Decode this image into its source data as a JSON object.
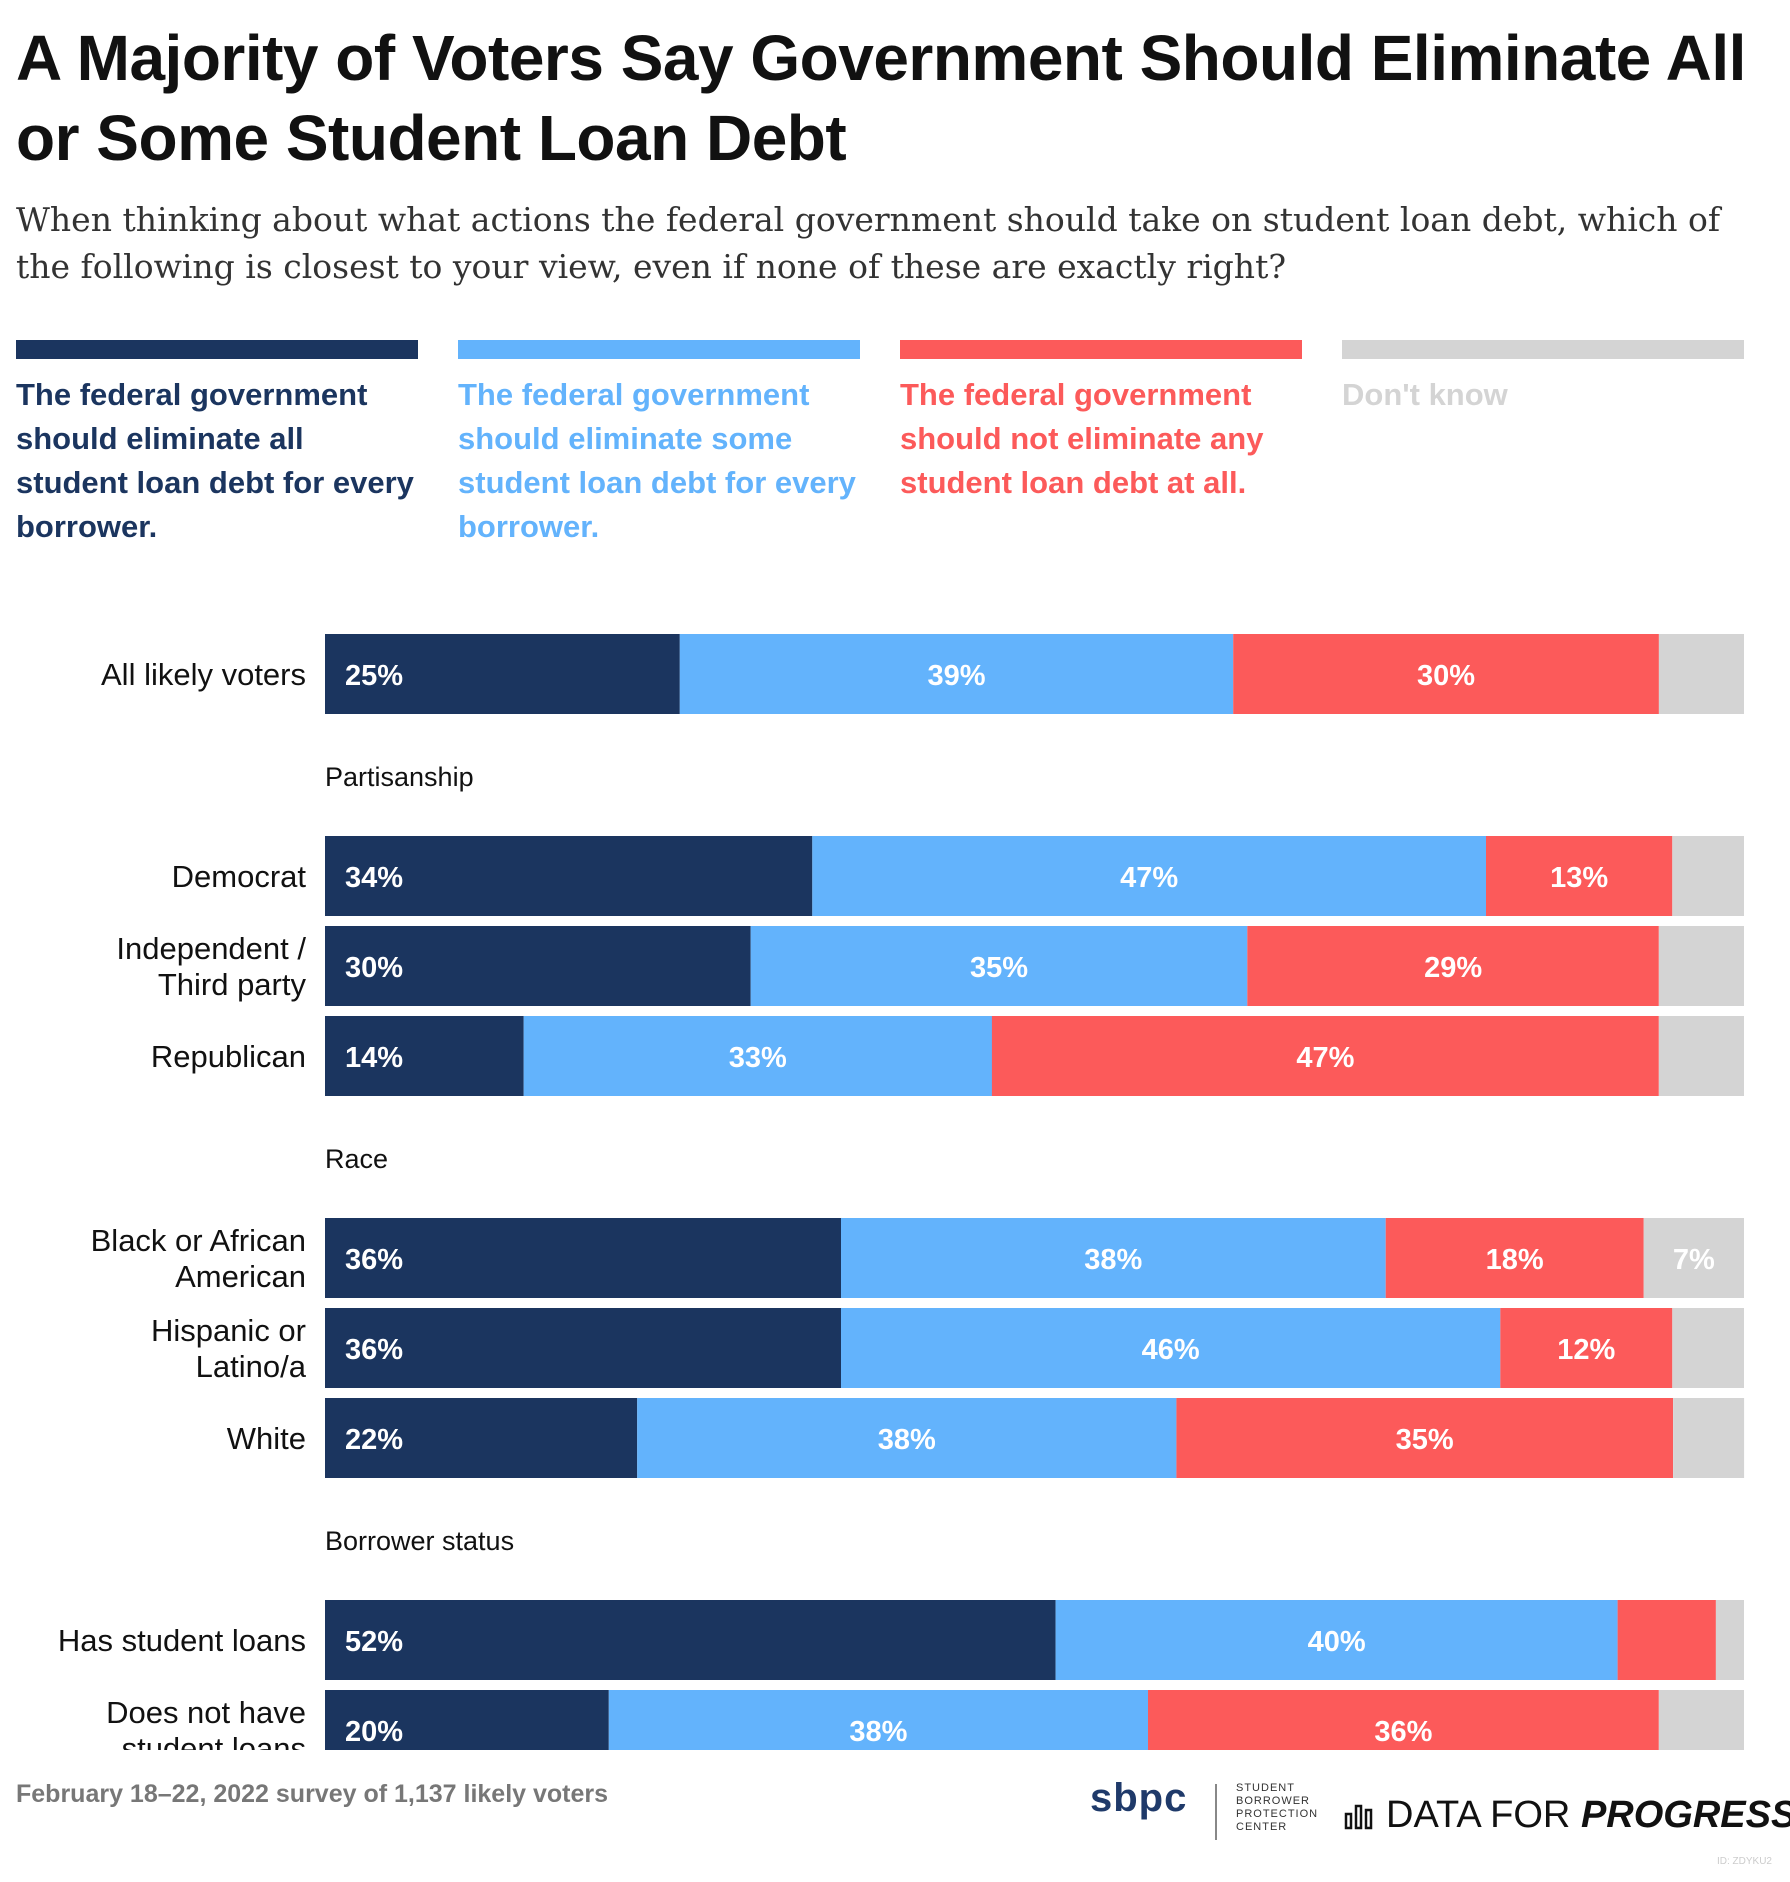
{
  "title": "A Majority of Voters Say Government Should Eliminate All or Some Student Loan Debt",
  "subtitle": "When thinking about what actions the federal government should take on student loan debt, which of the following is closest to your view, even if none of these are exactly right?",
  "footnote": "February 18–22, 2022 survey of 1,137 likely voters",
  "logos": {
    "sbpc_mark": "sbpc",
    "sbpc_lines": [
      "STUDENT",
      "BORROWER",
      "PROTECTION",
      "CENTER"
    ],
    "dfp_left": "DATA FOR",
    "dfp_right": "PROGRESS",
    "dfp_icon": "bar-chart-icon"
  },
  "corner_id": "ID: ZDYKU2",
  "colors": {
    "eliminate_all": "#1b355f",
    "eliminate_some": "#63b3fc",
    "eliminate_none": "#fc5a5a",
    "dont_know": "#d4d4d4",
    "group_label": "#111111",
    "axis_tick": "#777777"
  },
  "legend": [
    {
      "label": "The federal government should eliminate all student loan debt for every borrower.",
      "color": "#1b355f"
    },
    {
      "label": "The federal government should eliminate some student loan debt for every borrower.",
      "color": "#63b3fc"
    },
    {
      "label": "The federal government should not eliminate any student loan debt at all.",
      "color": "#fc5a5a"
    },
    {
      "label": "Don't know",
      "color": "#d4d4d4"
    }
  ],
  "chart_data": {
    "type": "bar",
    "orientation": "horizontal",
    "stacked": true,
    "series": [
      {
        "name": "The federal government should eliminate all student loan debt for every borrower.",
        "color": "#1b355f"
      },
      {
        "name": "The federal government should eliminate some student loan debt for every borrower.",
        "color": "#63b3fc"
      },
      {
        "name": "The federal government should not eliminate any student loan debt at all.",
        "color": "#fc5a5a"
      },
      {
        "name": "Don't know",
        "color": "#d4d4d4"
      }
    ],
    "groups": [
      {
        "header": "",
        "rows": [
          {
            "label": "All likely voters",
            "values": [
              25,
              39,
              30,
              6
            ],
            "labels": [
              "25%",
              "39%",
              "30%",
              ""
            ]
          }
        ]
      },
      {
        "header": "Partisanship",
        "rows": [
          {
            "label": "Democrat",
            "values": [
              34,
              47,
              13,
              5
            ],
            "labels": [
              "34%",
              "47%",
              "13%",
              ""
            ]
          },
          {
            "label": "Independent / Third party",
            "values": [
              30,
              35,
              29,
              6
            ],
            "labels": [
              "30%",
              "35%",
              "29%",
              ""
            ]
          },
          {
            "label": "Republican",
            "values": [
              14,
              33,
              47,
              6
            ],
            "labels": [
              "14%",
              "33%",
              "47%",
              ""
            ]
          }
        ]
      },
      {
        "header": "Race",
        "rows": [
          {
            "label": "Black or African American",
            "values": [
              36,
              38,
              18,
              7
            ],
            "labels": [
              "36%",
              "38%",
              "18%",
              "7%"
            ]
          },
          {
            "label": "Hispanic or Latino/a",
            "values": [
              36,
              46,
              12,
              5
            ],
            "labels": [
              "36%",
              "46%",
              "12%",
              ""
            ]
          },
          {
            "label": "White",
            "values": [
              22,
              38,
              35,
              5
            ],
            "labels": [
              "22%",
              "38%",
              "35%",
              ""
            ]
          }
        ]
      },
      {
        "header": "Borrower status",
        "rows": [
          {
            "label": "Has student loans",
            "values": [
              52,
              40,
              7,
              2
            ],
            "labels": [
              "52%",
              "40%",
              "",
              ""
            ]
          },
          {
            "label": "Does not have student loans",
            "values": [
              20,
              38,
              36,
              6
            ],
            "labels": [
              "20%",
              "38%",
              "36%",
              ""
            ]
          }
        ]
      }
    ],
    "xticks": [
      0,
      25,
      50,
      75,
      100
    ],
    "xtick_labels": [
      "0%",
      "25%",
      "50%",
      "75%",
      "100%"
    ],
    "xlim": [
      0,
      100
    ],
    "grid": false,
    "legend_position": "top"
  }
}
